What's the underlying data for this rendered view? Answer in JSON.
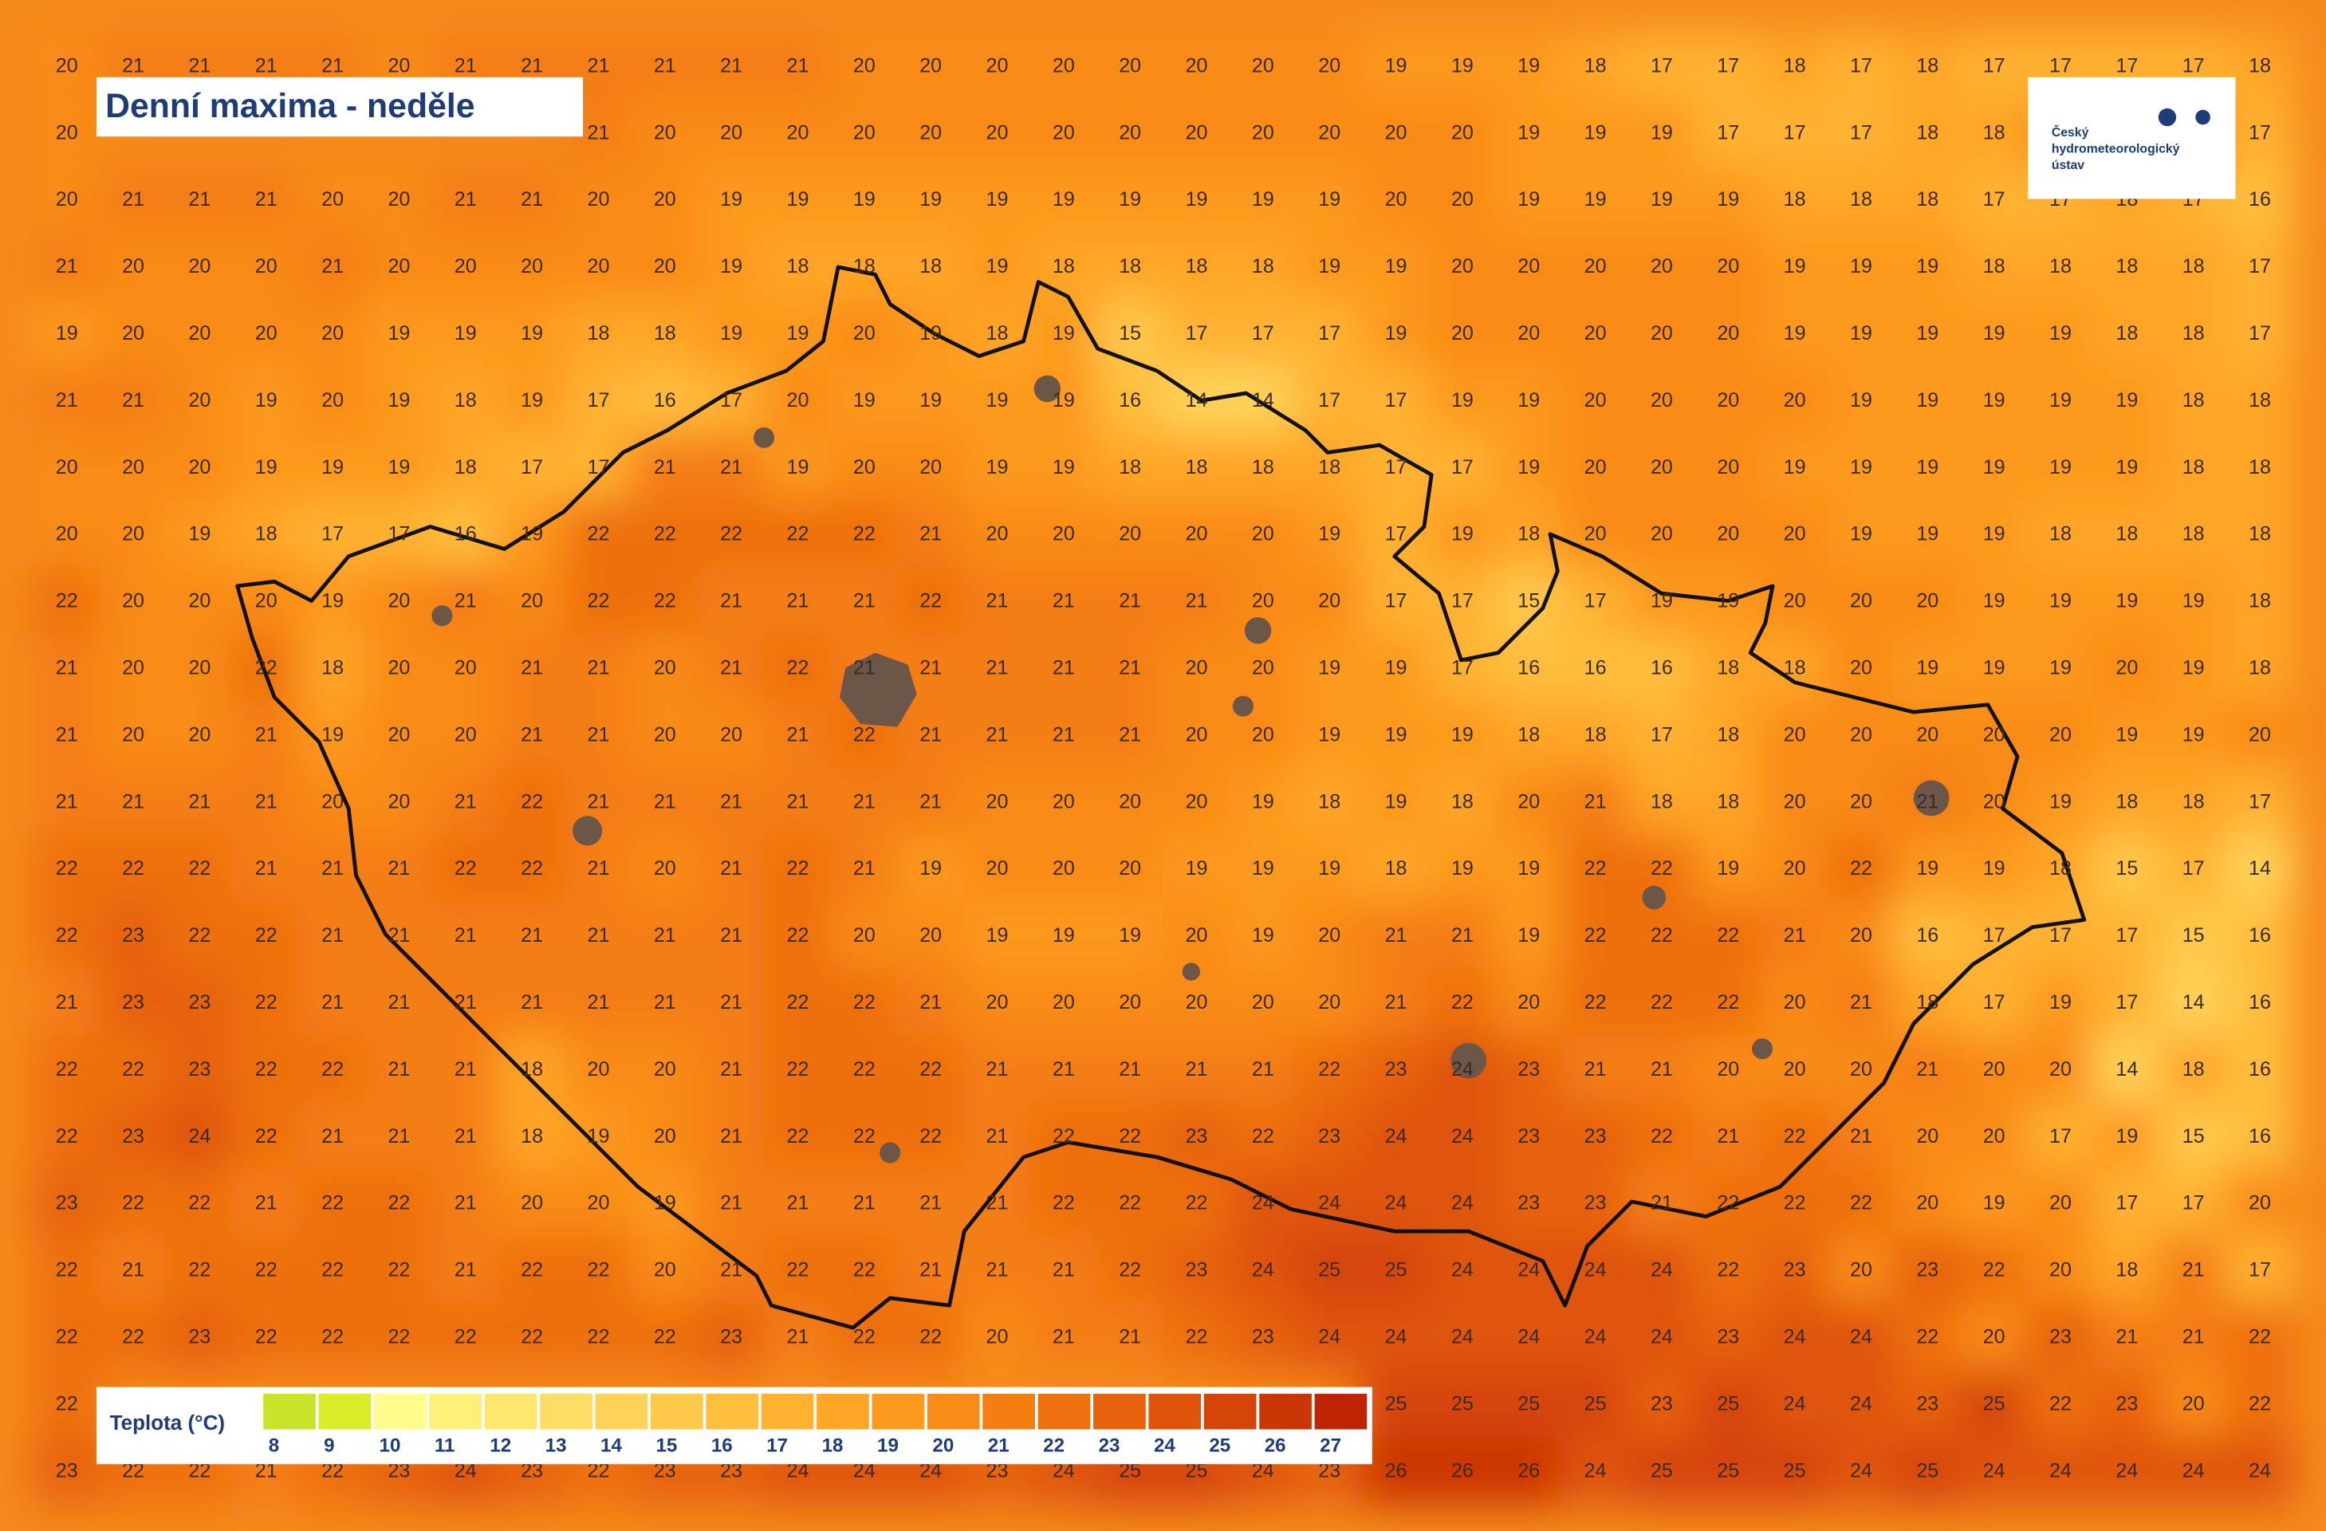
{
  "header": {
    "title": "Denní maxima - neděle"
  },
  "logo": {
    "lines": [
      "Český",
      "hydrometeorologický",
      "ústav"
    ]
  },
  "grid": {
    "rows": [
      [
        20,
        21,
        21,
        21,
        21,
        20,
        21,
        21,
        21,
        21,
        21,
        21,
        20,
        20,
        20,
        20,
        20,
        20,
        20,
        20,
        19,
        19,
        19,
        18,
        17,
        17,
        18,
        17,
        18,
        17,
        17,
        17,
        17,
        18
      ],
      [
        20,
        null,
        null,
        null,
        null,
        null,
        null,
        null,
        21,
        20,
        20,
        20,
        20,
        20,
        20,
        20,
        20,
        20,
        20,
        20,
        20,
        20,
        19,
        19,
        19,
        17,
        17,
        17,
        18,
        18,
        null,
        null,
        null,
        17
      ],
      [
        20,
        21,
        21,
        21,
        20,
        20,
        21,
        21,
        20,
        20,
        19,
        19,
        19,
        19,
        19,
        19,
        19,
        19,
        19,
        19,
        20,
        20,
        19,
        19,
        19,
        19,
        18,
        18,
        18,
        17,
        17,
        18,
        17,
        16
      ],
      [
        21,
        20,
        20,
        20,
        21,
        20,
        20,
        20,
        20,
        20,
        19,
        18,
        18,
        18,
        19,
        18,
        18,
        18,
        18,
        19,
        19,
        20,
        20,
        20,
        20,
        20,
        19,
        19,
        19,
        18,
        18,
        18,
        18,
        17
      ],
      [
        19,
        20,
        20,
        20,
        20,
        19,
        19,
        19,
        18,
        18,
        19,
        19,
        20,
        19,
        18,
        19,
        15,
        17,
        17,
        17,
        19,
        20,
        20,
        20,
        20,
        20,
        19,
        19,
        19,
        19,
        19,
        18,
        18,
        17
      ],
      [
        21,
        21,
        20,
        19,
        20,
        19,
        18,
        19,
        17,
        16,
        17,
        20,
        19,
        19,
        19,
        19,
        16,
        14,
        14,
        17,
        17,
        19,
        19,
        20,
        20,
        20,
        20,
        19,
        19,
        19,
        19,
        19,
        18,
        18
      ],
      [
        20,
        20,
        20,
        19,
        19,
        19,
        18,
        17,
        17,
        21,
        21,
        19,
        20,
        20,
        19,
        19,
        18,
        18,
        18,
        18,
        17,
        17,
        19,
        20,
        20,
        20,
        19,
        19,
        19,
        19,
        19,
        19,
        18,
        18
      ],
      [
        20,
        20,
        19,
        18,
        17,
        17,
        16,
        19,
        22,
        22,
        22,
        22,
        22,
        21,
        20,
        20,
        20,
        20,
        20,
        19,
        17,
        19,
        18,
        20,
        20,
        20,
        20,
        19,
        19,
        19,
        18,
        18,
        18,
        18
      ],
      [
        22,
        20,
        20,
        20,
        19,
        20,
        21,
        20,
        22,
        22,
        21,
        21,
        21,
        22,
        21,
        21,
        21,
        21,
        20,
        20,
        17,
        17,
        15,
        17,
        19,
        19,
        20,
        20,
        20,
        19,
        19,
        19,
        19,
        18
      ],
      [
        21,
        20,
        20,
        22,
        18,
        20,
        20,
        21,
        21,
        20,
        21,
        22,
        21,
        21,
        21,
        21,
        21,
        20,
        20,
        19,
        19,
        17,
        16,
        16,
        16,
        18,
        18,
        20,
        19,
        19,
        19,
        20,
        19,
        18
      ],
      [
        21,
        20,
        20,
        21,
        19,
        20,
        20,
        21,
        21,
        20,
        20,
        21,
        22,
        21,
        21,
        21,
        21,
        20,
        20,
        19,
        19,
        19,
        18,
        18,
        17,
        18,
        20,
        20,
        20,
        20,
        20,
        19,
        19,
        20
      ],
      [
        21,
        21,
        21,
        21,
        20,
        20,
        21,
        22,
        21,
        21,
        21,
        21,
        21,
        21,
        20,
        20,
        20,
        20,
        19,
        18,
        19,
        18,
        20,
        21,
        18,
        18,
        20,
        20,
        21,
        20,
        19,
        18,
        18,
        17
      ],
      [
        22,
        22,
        22,
        21,
        21,
        21,
        22,
        22,
        21,
        20,
        21,
        22,
        21,
        19,
        20,
        20,
        20,
        19,
        19,
        19,
        18,
        19,
        19,
        22,
        22,
        19,
        20,
        22,
        19,
        19,
        18,
        15,
        17,
        14
      ],
      [
        22,
        23,
        22,
        22,
        21,
        21,
        21,
        21,
        21,
        21,
        21,
        22,
        20,
        20,
        19,
        19,
        19,
        20,
        19,
        20,
        21,
        21,
        19,
        22,
        22,
        22,
        21,
        20,
        16,
        17,
        17,
        17,
        15,
        16
      ],
      [
        21,
        23,
        23,
        22,
        21,
        21,
        21,
        21,
        21,
        21,
        21,
        22,
        22,
        21,
        20,
        20,
        20,
        20,
        20,
        20,
        21,
        22,
        20,
        22,
        22,
        22,
        20,
        21,
        18,
        17,
        19,
        17,
        14,
        16
      ],
      [
        22,
        22,
        23,
        22,
        22,
        21,
        21,
        18,
        20,
        20,
        21,
        22,
        22,
        22,
        21,
        21,
        21,
        21,
        21,
        22,
        23,
        24,
        23,
        21,
        21,
        20,
        20,
        20,
        21,
        20,
        20,
        14,
        18,
        16
      ],
      [
        22,
        23,
        24,
        22,
        21,
        21,
        21,
        18,
        19,
        20,
        21,
        22,
        22,
        22,
        21,
        22,
        22,
        23,
        22,
        23,
        24,
        24,
        23,
        23,
        22,
        21,
        22,
        21,
        20,
        20,
        17,
        19,
        15,
        16
      ],
      [
        23,
        22,
        22,
        21,
        22,
        22,
        21,
        20,
        20,
        19,
        21,
        21,
        21,
        21,
        21,
        22,
        22,
        22,
        24,
        24,
        24,
        24,
        23,
        23,
        21,
        22,
        22,
        22,
        20,
        19,
        20,
        17,
        17,
        20
      ],
      [
        22,
        21,
        22,
        22,
        22,
        22,
        21,
        22,
        22,
        20,
        21,
        22,
        22,
        21,
        21,
        21,
        22,
        23,
        24,
        25,
        25,
        24,
        24,
        24,
        24,
        22,
        23,
        20,
        23,
        22,
        20,
        18,
        21,
        17
      ],
      [
        22,
        22,
        23,
        22,
        22,
        22,
        22,
        22,
        22,
        22,
        23,
        21,
        22,
        22,
        20,
        21,
        21,
        22,
        23,
        24,
        24,
        24,
        24,
        24,
        24,
        23,
        24,
        24,
        22,
        20,
        23,
        21,
        21,
        22
      ],
      [
        22,
        null,
        null,
        null,
        null,
        null,
        null,
        null,
        null,
        null,
        null,
        null,
        null,
        null,
        null,
        null,
        null,
        null,
        null,
        null,
        25,
        25,
        25,
        25,
        23,
        25,
        24,
        24,
        23,
        25,
        22,
        23,
        20,
        22
      ],
      [
        23,
        22,
        22,
        21,
        22,
        23,
        24,
        23,
        22,
        23,
        23,
        24,
        24,
        24,
        23,
        24,
        25,
        25,
        24,
        23,
        26,
        26,
        26,
        24,
        25,
        25,
        25,
        24,
        25,
        24,
        24,
        24,
        24,
        24
      ]
    ]
  },
  "legend": {
    "title": "Teplota (°C)",
    "items": [
      {
        "value": 8,
        "color": "#c9e32a"
      },
      {
        "value": 9,
        "color": "#dcec2b"
      },
      {
        "value": 10,
        "color": "#fffb8c"
      },
      {
        "value": 11,
        "color": "#fff07a"
      },
      {
        "value": 12,
        "color": "#ffe76e"
      },
      {
        "value": 13,
        "color": "#ffdd64"
      },
      {
        "value": 14,
        "color": "#ffd358"
      },
      {
        "value": 15,
        "color": "#ffc94b"
      },
      {
        "value": 16,
        "color": "#ffbe3e"
      },
      {
        "value": 17,
        "color": "#ffb232"
      },
      {
        "value": 18,
        "color": "#ffa626"
      },
      {
        "value": 19,
        "color": "#fd991c"
      },
      {
        "value": 20,
        "color": "#f98b16"
      },
      {
        "value": 21,
        "color": "#f47e12"
      },
      {
        "value": 22,
        "color": "#ee700f"
      },
      {
        "value": 23,
        "color": "#e7620c"
      },
      {
        "value": 24,
        "color": "#df540a"
      },
      {
        "value": 25,
        "color": "#d64508"
      },
      {
        "value": 26,
        "color": "#cb3606"
      },
      {
        "value": 27,
        "color": "#bf2404"
      }
    ]
  }
}
